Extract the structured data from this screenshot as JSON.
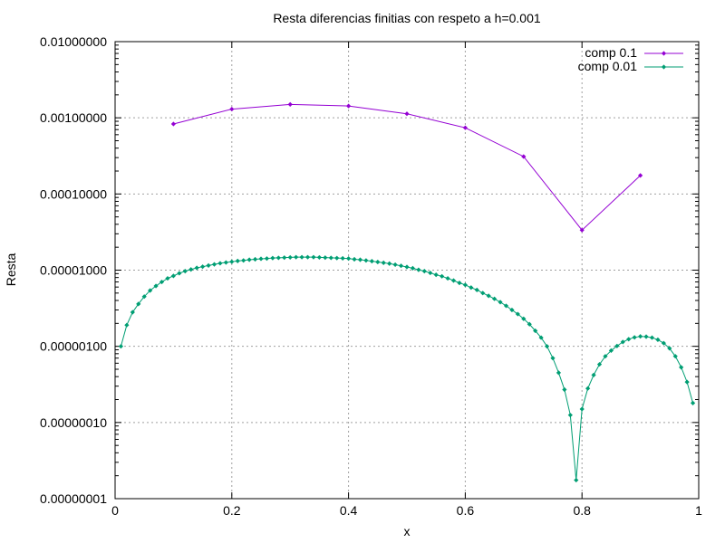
{
  "chart_data": {
    "type": "line",
    "title": "Resta diferencias finitias con respeto a h=0.001",
    "xlabel": "x",
    "ylabel": "Resta",
    "xlim": [
      0,
      1
    ],
    "ylim": [
      1e-08,
      0.01
    ],
    "yscale": "log",
    "grid": true,
    "legend_position": "top-right",
    "x_ticks": [
      "0",
      "0.2",
      "0.4",
      "0.6",
      "0.8",
      "1"
    ],
    "x_tick_values": [
      0,
      0.2,
      0.4,
      0.6,
      0.8,
      1
    ],
    "y_ticks": [
      "0.00000001",
      "0.00000010",
      "0.00000100",
      "0.00001000",
      "0.00010000",
      "0.00100000",
      "0.01000000"
    ],
    "y_tick_values": [
      1e-08,
      1e-07,
      1e-06,
      1e-05,
      0.0001,
      0.001,
      0.01
    ],
    "series": [
      {
        "name": "comp 0.1",
        "color": "#9400d3",
        "x": [
          0.1,
          0.2,
          0.3,
          0.4,
          0.5,
          0.6,
          0.7,
          0.8,
          0.9
        ],
        "y": [
          0.00083,
          0.0013,
          0.0015,
          0.00143,
          0.00113,
          0.00074,
          0.00031,
          3.35e-05,
          0.000175
        ]
      },
      {
        "name": "comp 0.01",
        "color": "#009e73",
        "x": [
          0.01,
          0.02,
          0.03,
          0.04,
          0.05,
          0.06,
          0.07,
          0.08,
          0.09,
          0.1,
          0.11,
          0.12,
          0.13,
          0.14,
          0.15,
          0.16,
          0.17,
          0.18,
          0.19,
          0.2,
          0.21,
          0.22,
          0.23,
          0.24,
          0.25,
          0.26,
          0.27,
          0.28,
          0.29,
          0.3,
          0.31,
          0.32,
          0.33,
          0.34,
          0.35,
          0.36,
          0.37,
          0.38,
          0.39,
          0.4,
          0.41,
          0.42,
          0.43,
          0.44,
          0.45,
          0.46,
          0.47,
          0.48,
          0.49,
          0.5,
          0.51,
          0.52,
          0.53,
          0.54,
          0.55,
          0.56,
          0.57,
          0.58,
          0.59,
          0.6,
          0.61,
          0.62,
          0.63,
          0.64,
          0.65,
          0.66,
          0.67,
          0.68,
          0.69,
          0.7,
          0.71,
          0.72,
          0.73,
          0.74,
          0.75,
          0.76,
          0.77,
          0.78,
          0.79,
          0.8,
          0.81,
          0.82,
          0.83,
          0.84,
          0.85,
          0.86,
          0.87,
          0.88,
          0.89,
          0.9,
          0.91,
          0.92,
          0.93,
          0.94,
          0.95,
          0.96,
          0.97,
          0.98,
          0.99
        ],
        "y": [
          1e-06,
          1.9e-06,
          2.8e-06,
          3.6e-06,
          4.5e-06,
          5.4e-06,
          6.2e-06,
          7e-06,
          7.8e-06,
          8.4e-06,
          9.1e-06,
          9.7e-06,
          1.02e-05,
          1.07e-05,
          1.11e-05,
          1.15e-05,
          1.19e-05,
          1.23e-05,
          1.26e-05,
          1.29e-05,
          1.32e-05,
          1.34e-05,
          1.37e-05,
          1.39e-05,
          1.41e-05,
          1.42e-05,
          1.44e-05,
          1.45e-05,
          1.46e-05,
          1.47e-05,
          1.48e-05,
          1.48e-05,
          1.48e-05,
          1.48e-05,
          1.47e-05,
          1.46e-05,
          1.45e-05,
          1.44e-05,
          1.43e-05,
          1.42e-05,
          1.39e-05,
          1.37e-05,
          1.34e-05,
          1.31e-05,
          1.28e-05,
          1.25e-05,
          1.22e-05,
          1.18e-05,
          1.14e-05,
          1.1e-05,
          1.06e-05,
          1.01e-05,
          9.7e-06,
          9.2e-06,
          8.7e-06,
          8.3e-06,
          7.8e-06,
          7.3e-06,
          6.8e-06,
          6.4e-06,
          5.9e-06,
          5.5e-06,
          5e-06,
          4.6e-06,
          4.2e-06,
          3.8e-06,
          3.4e-06,
          3e-06,
          2.65e-06,
          2.3e-06,
          1.95e-06,
          1.6e-06,
          1.3e-06,
          1e-06,
          7e-07,
          4.5e-07,
          2.7e-07,
          1.25e-07,
          1.75e-08,
          1.5e-07,
          2.8e-07,
          4.2e-07,
          5.8e-07,
          7.4e-07,
          8.8e-07,
          1.01e-06,
          1.14e-06,
          1.24e-06,
          1.31e-06,
          1.35e-06,
          1.34e-06,
          1.3e-06,
          1.22e-06,
          1.1e-06,
          9.4e-07,
          7.4e-07,
          5.3e-07,
          3.4e-07,
          1.8e-07
        ]
      }
    ]
  }
}
